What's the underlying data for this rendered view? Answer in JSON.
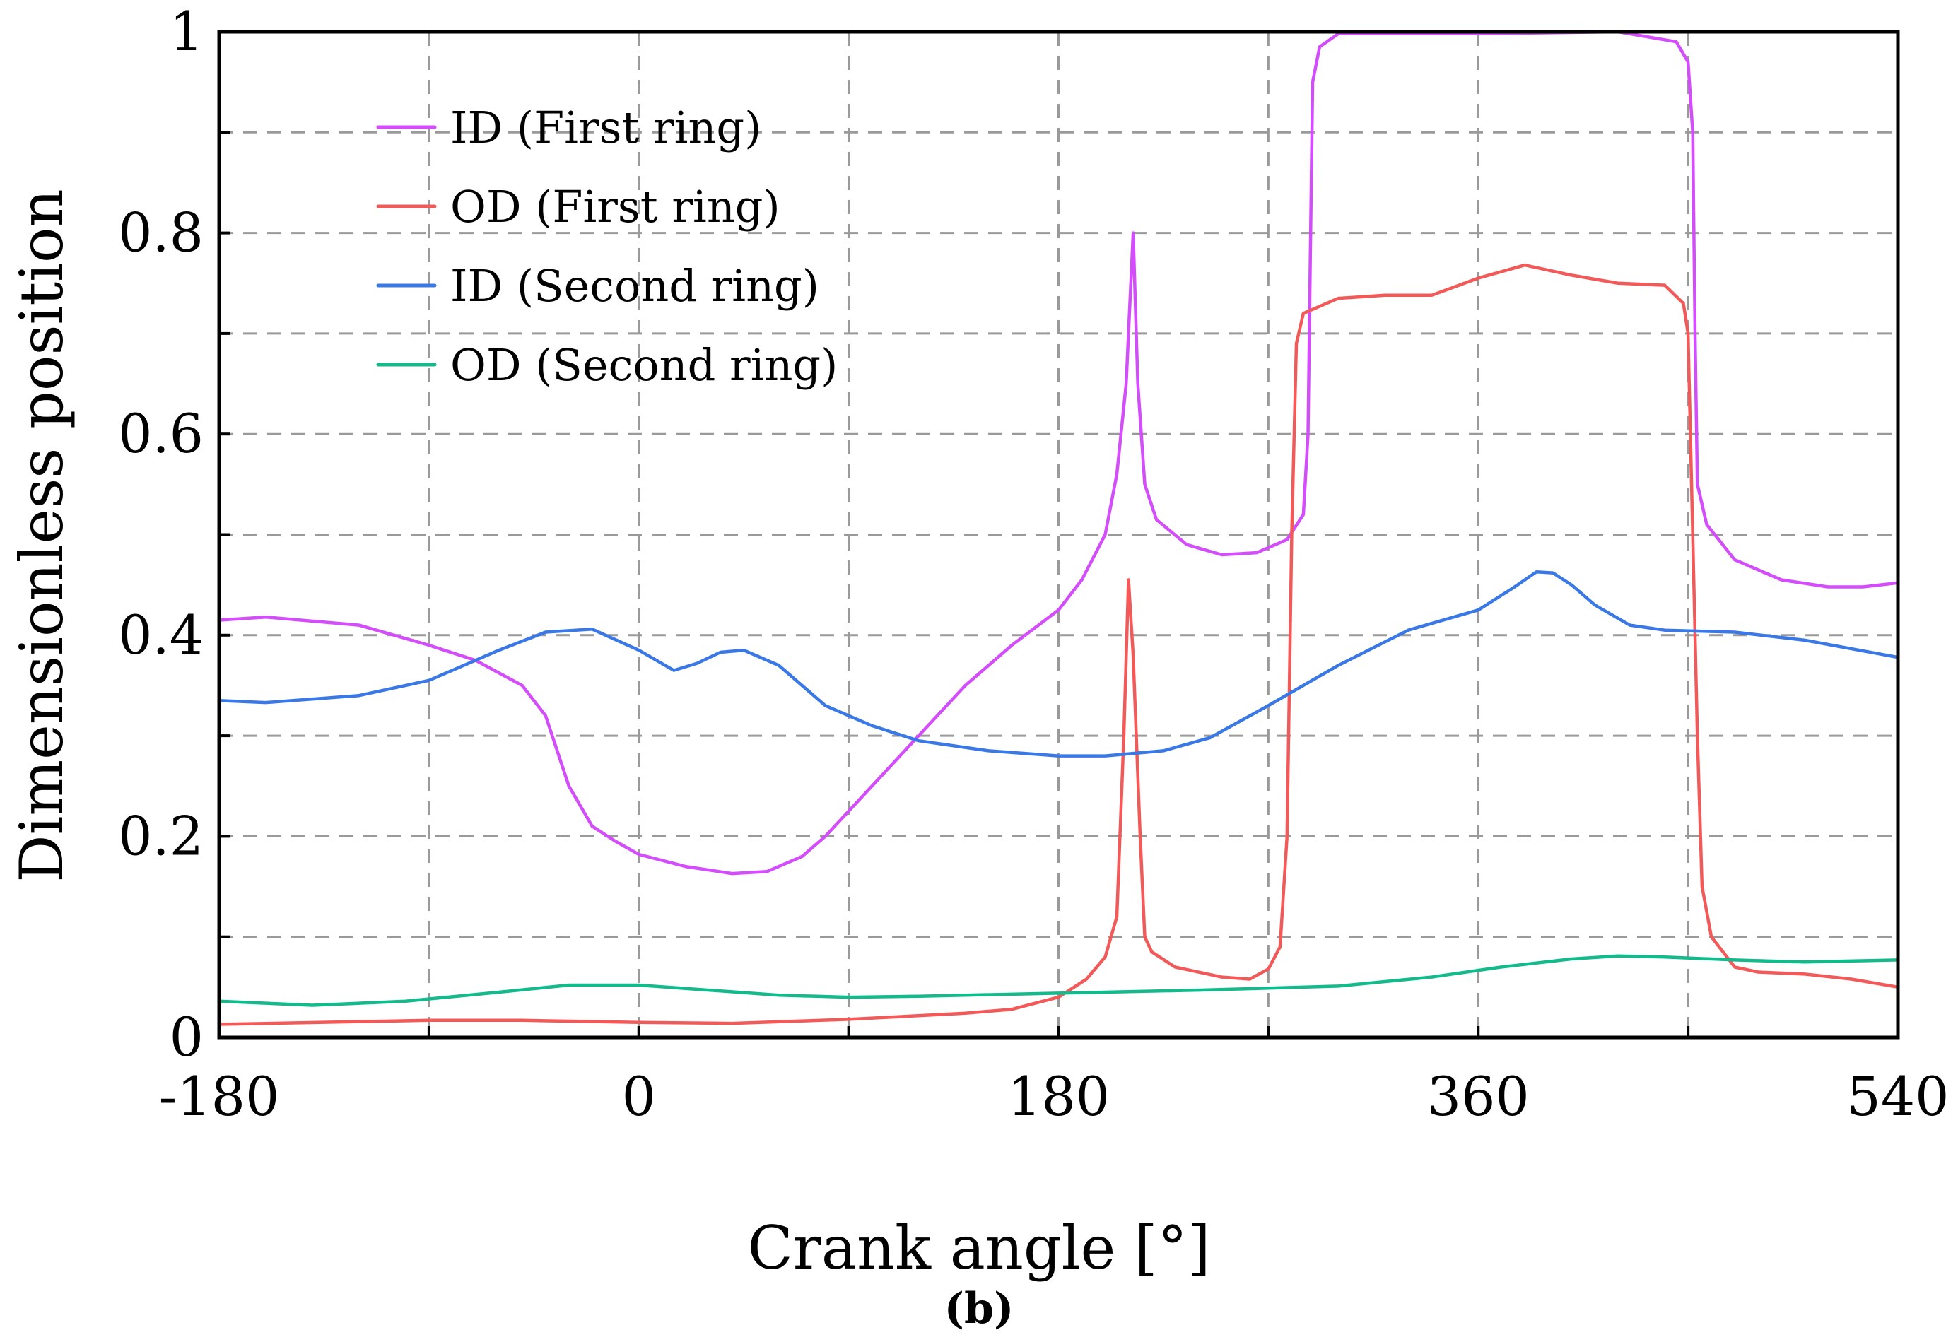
{
  "chart_data": {
    "type": "line",
    "title": "",
    "xlabel": "Crank angle [°]",
    "ylabel": "Dimensionless position",
    "panel_label": "(b)",
    "xlim": [
      -180,
      540
    ],
    "ylim": [
      0,
      1
    ],
    "x_ticks": [
      -180,
      0,
      180,
      360,
      540
    ],
    "x_tick_labels": [
      "-180",
      "0",
      "180",
      "360",
      "540"
    ],
    "x_grid": [
      -90,
      0,
      90,
      180,
      270,
      360,
      450
    ],
    "y_ticks": [
      0,
      0.2,
      0.4,
      0.6,
      0.8,
      1
    ],
    "y_tick_labels": [
      "0",
      "0.2",
      "0.4",
      "0.6",
      "0.8",
      "1"
    ],
    "y_grid": [
      0.1,
      0.2,
      0.3,
      0.4,
      0.5,
      0.6,
      0.7,
      0.8,
      0.9
    ],
    "grid": true,
    "legend_position": "top-left",
    "series": [
      {
        "name": "ID (First ring)",
        "color": "#d34dfa",
        "points": [
          [
            -180,
            0.415
          ],
          [
            -160,
            0.418
          ],
          [
            -120,
            0.41
          ],
          [
            -90,
            0.39
          ],
          [
            -70,
            0.375
          ],
          [
            -50,
            0.35
          ],
          [
            -40,
            0.32
          ],
          [
            -30,
            0.25
          ],
          [
            -20,
            0.21
          ],
          [
            -10,
            0.195
          ],
          [
            0,
            0.182
          ],
          [
            20,
            0.17
          ],
          [
            40,
            0.163
          ],
          [
            55,
            0.165
          ],
          [
            70,
            0.18
          ],
          [
            80,
            0.2
          ],
          [
            100,
            0.25
          ],
          [
            120,
            0.3
          ],
          [
            140,
            0.35
          ],
          [
            160,
            0.39
          ],
          [
            180,
            0.425
          ],
          [
            190,
            0.455
          ],
          [
            200,
            0.5
          ],
          [
            205,
            0.56
          ],
          [
            209,
            0.65
          ],
          [
            212,
            0.8
          ],
          [
            214,
            0.65
          ],
          [
            217,
            0.55
          ],
          [
            222,
            0.515
          ],
          [
            235,
            0.49
          ],
          [
            250,
            0.48
          ],
          [
            265,
            0.482
          ],
          [
            278,
            0.495
          ],
          [
            285,
            0.52
          ],
          [
            287,
            0.6
          ],
          [
            288,
            0.78
          ],
          [
            289,
            0.95
          ],
          [
            292,
            0.985
          ],
          [
            300,
            0.998
          ],
          [
            360,
            0.998
          ],
          [
            420,
            1.0
          ],
          [
            445,
            0.99
          ],
          [
            450,
            0.97
          ],
          [
            452,
            0.9
          ],
          [
            453,
            0.7
          ],
          [
            454,
            0.55
          ],
          [
            458,
            0.51
          ],
          [
            470,
            0.475
          ],
          [
            490,
            0.455
          ],
          [
            510,
            0.448
          ],
          [
            525,
            0.448
          ],
          [
            540,
            0.452
          ]
        ]
      },
      {
        "name": "OD (First ring)",
        "color": "#f25a5a",
        "points": [
          [
            -180,
            0.013
          ],
          [
            -90,
            0.017
          ],
          [
            -50,
            0.017
          ],
          [
            0,
            0.015
          ],
          [
            40,
            0.014
          ],
          [
            90,
            0.018
          ],
          [
            140,
            0.024
          ],
          [
            160,
            0.028
          ],
          [
            180,
            0.04
          ],
          [
            192,
            0.058
          ],
          [
            200,
            0.08
          ],
          [
            205,
            0.12
          ],
          [
            208,
            0.3
          ],
          [
            210,
            0.455
          ],
          [
            212,
            0.38
          ],
          [
            215,
            0.2
          ],
          [
            217,
            0.1
          ],
          [
            220,
            0.085
          ],
          [
            230,
            0.07
          ],
          [
            250,
            0.06
          ],
          [
            262,
            0.058
          ],
          [
            270,
            0.068
          ],
          [
            275,
            0.09
          ],
          [
            278,
            0.2
          ],
          [
            280,
            0.5
          ],
          [
            282,
            0.69
          ],
          [
            285,
            0.72
          ],
          [
            300,
            0.735
          ],
          [
            320,
            0.738
          ],
          [
            340,
            0.738
          ],
          [
            360,
            0.755
          ],
          [
            380,
            0.768
          ],
          [
            400,
            0.758
          ],
          [
            420,
            0.75
          ],
          [
            440,
            0.748
          ],
          [
            448,
            0.73
          ],
          [
            450,
            0.7
          ],
          [
            452,
            0.5
          ],
          [
            454,
            0.3
          ],
          [
            456,
            0.15
          ],
          [
            460,
            0.1
          ],
          [
            470,
            0.07
          ],
          [
            480,
            0.065
          ],
          [
            500,
            0.063
          ],
          [
            520,
            0.058
          ],
          [
            540,
            0.05
          ]
        ]
      },
      {
        "name": "ID (Second ring)",
        "color": "#3a78e6",
        "points": [
          [
            -180,
            0.335
          ],
          [
            -160,
            0.333
          ],
          [
            -120,
            0.34
          ],
          [
            -90,
            0.355
          ],
          [
            -60,
            0.385
          ],
          [
            -40,
            0.403
          ],
          [
            -20,
            0.406
          ],
          [
            0,
            0.385
          ],
          [
            15,
            0.365
          ],
          [
            25,
            0.372
          ],
          [
            35,
            0.383
          ],
          [
            45,
            0.385
          ],
          [
            60,
            0.37
          ],
          [
            80,
            0.33
          ],
          [
            100,
            0.31
          ],
          [
            120,
            0.295
          ],
          [
            150,
            0.285
          ],
          [
            180,
            0.28
          ],
          [
            200,
            0.28
          ],
          [
            225,
            0.285
          ],
          [
            245,
            0.298
          ],
          [
            270,
            0.33
          ],
          [
            300,
            0.37
          ],
          [
            330,
            0.405
          ],
          [
            360,
            0.425
          ],
          [
            375,
            0.447
          ],
          [
            385,
            0.463
          ],
          [
            392,
            0.462
          ],
          [
            400,
            0.45
          ],
          [
            410,
            0.43
          ],
          [
            425,
            0.41
          ],
          [
            440,
            0.405
          ],
          [
            470,
            0.403
          ],
          [
            500,
            0.395
          ],
          [
            540,
            0.378
          ]
        ]
      },
      {
        "name": "OD (Second ring)",
        "color": "#14b98c",
        "points": [
          [
            -180,
            0.036
          ],
          [
            -140,
            0.032
          ],
          [
            -100,
            0.036
          ],
          [
            -60,
            0.045
          ],
          [
            -30,
            0.052
          ],
          [
            0,
            0.052
          ],
          [
            30,
            0.047
          ],
          [
            60,
            0.042
          ],
          [
            90,
            0.04
          ],
          [
            120,
            0.041
          ],
          [
            180,
            0.044
          ],
          [
            240,
            0.047
          ],
          [
            300,
            0.051
          ],
          [
            340,
            0.06
          ],
          [
            370,
            0.07
          ],
          [
            400,
            0.078
          ],
          [
            420,
            0.081
          ],
          [
            440,
            0.08
          ],
          [
            470,
            0.077
          ],
          [
            500,
            0.075
          ],
          [
            540,
            0.077
          ]
        ]
      }
    ]
  }
}
